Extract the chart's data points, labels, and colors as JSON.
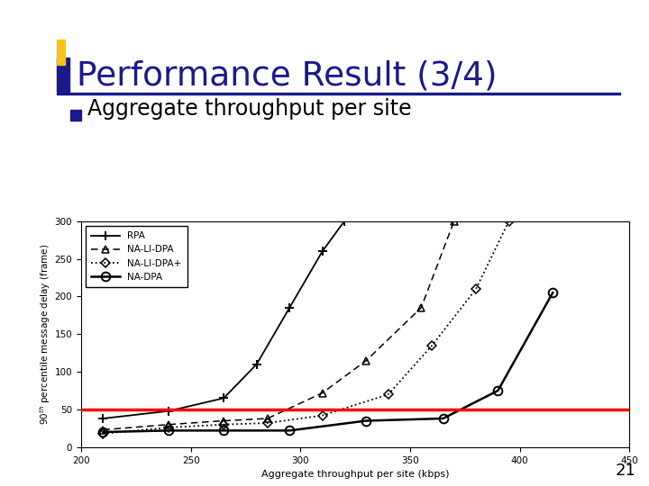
{
  "title": "Performance Result (3/4)",
  "subtitle": "Aggregate throughput per site",
  "title_color": "#1a1a8c",
  "xlabel": "Aggregate throughput per site (kbps)",
  "ylabel": "90$^{th}$ percentile message delay (frame)",
  "xlim": [
    200,
    450
  ],
  "ylim": [
    0,
    300
  ],
  "xticks": [
    200,
    250,
    300,
    350,
    400,
    450
  ],
  "yticks": [
    0,
    50,
    100,
    150,
    200,
    250,
    300
  ],
  "red_line_y": 50,
  "page_number": "21",
  "RPA_x": [
    210,
    240,
    265,
    280,
    295,
    310,
    320
  ],
  "RPA_y": [
    38,
    48,
    65,
    110,
    185,
    260,
    300
  ],
  "NA_LI_DPA_x": [
    210,
    240,
    265,
    285,
    310,
    330,
    355,
    370
  ],
  "NA_LI_DPA_y": [
    23,
    30,
    35,
    38,
    72,
    115,
    185,
    300
  ],
  "NA_LI_DPAp_x": [
    210,
    240,
    265,
    285,
    310,
    340,
    360,
    380,
    395
  ],
  "NA_LI_DPAp_y": [
    18,
    26,
    30,
    32,
    42,
    70,
    135,
    210,
    300
  ],
  "NA_DPA_x": [
    210,
    240,
    265,
    295,
    330,
    365,
    390,
    415
  ],
  "NA_DPA_y": [
    20,
    22,
    22,
    22,
    35,
    38,
    75,
    205
  ],
  "bg_color": "#ffffff",
  "yellow_color": "#f5c518",
  "blue_color": "#1a1a8c",
  "red_color": "#ff0000",
  "plot_bg": "#ffffff"
}
